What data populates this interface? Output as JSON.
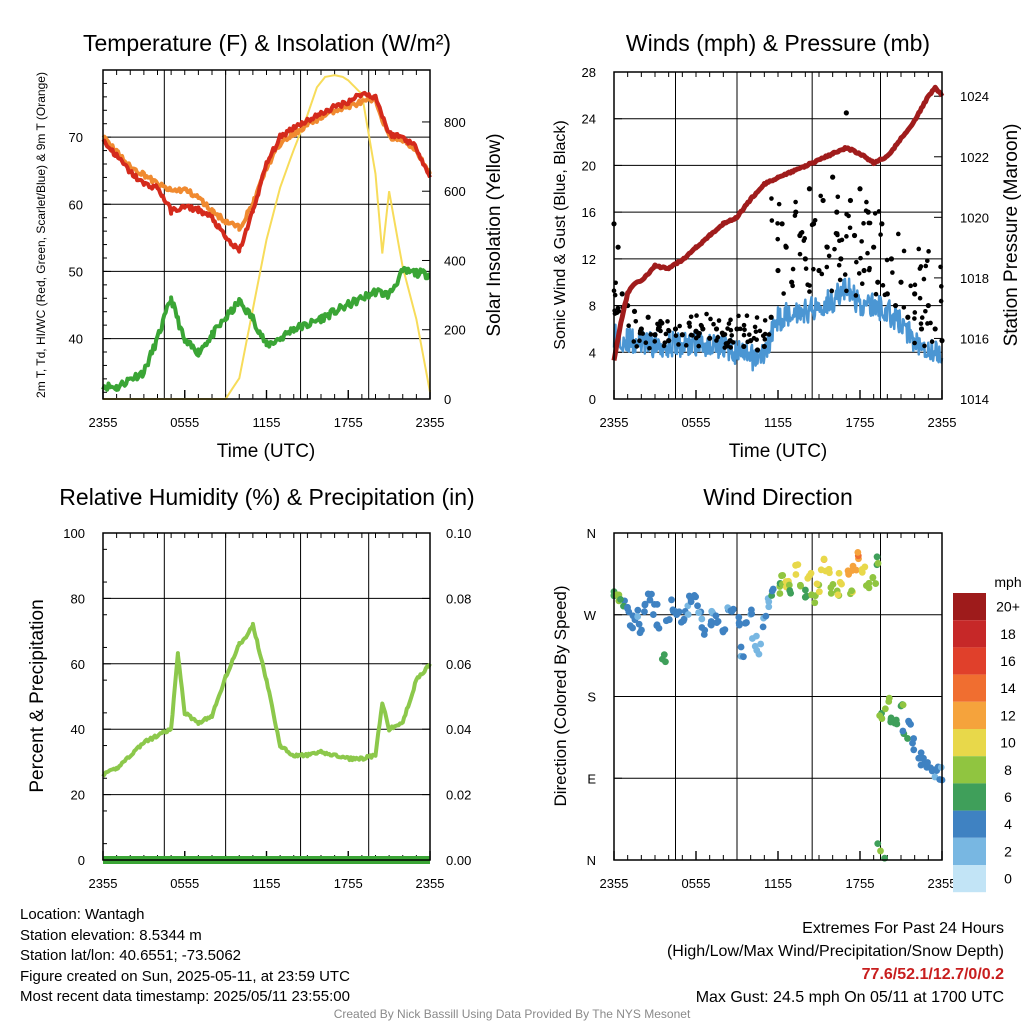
{
  "colors": {
    "temp": "#d42a1c",
    "dewpoint": "#3aa535",
    "heat_index": "#e03a2a",
    "temp_9m": "#f08a30",
    "insolation": "#f7dc5a",
    "wind": "#4b96d3",
    "gust": "#000000",
    "pressure": "#a01c1c",
    "rh": "#8cc84b",
    "precip": "#3aa535"
  },
  "panels": {
    "temperature": {
      "title": "Temperature (F) & Insolation (W/m²)",
      "ylabel_left": "2m T, Td, HI/WC (Red, Green, Scarlet/Blue) & 9m T (Orange)",
      "ylabel_right": "Solar Insolation (Yellow)",
      "xlabel": "Time (UTC)"
    },
    "winds": {
      "title": "Winds (mph) & Pressure (mb)",
      "ylabel_left": "Sonic Wind & Gust (Blue, Black)",
      "ylabel_right": "Station Pressure (Maroon)",
      "xlabel": "Time (UTC)"
    },
    "humidity": {
      "title": "Relative Humidity (%) & Precipitation (in)",
      "ylabel_left": "Percent & Precipitation"
    },
    "direction": {
      "title": "Wind Direction",
      "ylabel_left": "Direction (Colored By Speed)",
      "legend_title": "mph"
    }
  },
  "chart_data": [
    {
      "type": "line",
      "title": "Temperature (F) & Insolation (W/m²)",
      "xlabel": "Time (UTC)",
      "ylabel": "2m T, Td, HI/WC (Red, Green, Scarlet/Blue) & 9m T (Orange)",
      "ylabel_right": "Solar Insolation (Yellow)",
      "x_ticks": [
        "2355",
        "0555",
        "1155",
        "1755",
        "2355"
      ],
      "ylim": [
        31,
        80
      ],
      "y_ticks": [
        40,
        50,
        60,
        70
      ],
      "ylim_right": [
        0,
        950
      ],
      "y_ticks_right": [
        0,
        200,
        400,
        600,
        800
      ],
      "series": [
        {
          "axis": "left",
          "x": [
            0,
            1,
            2,
            3,
            4,
            5,
            6,
            7,
            8,
            9,
            10,
            11,
            12,
            13,
            14,
            15,
            16,
            17,
            18,
            19,
            20,
            21,
            22,
            23,
            24
          ],
          "values": [
            69.5,
            67.2,
            64.8,
            63.0,
            62.5,
            59.0,
            59.6,
            59.2,
            58.0,
            55.0,
            53.0,
            59.0,
            66.0,
            70.0,
            71.5,
            72.5,
            73.5,
            74.5,
            75.3,
            76.5,
            76.0,
            70.5,
            70.0,
            68.5,
            64.0
          ]
        },
        {
          "axis": "left",
          "x": [
            0,
            1,
            2,
            3,
            4,
            5,
            6,
            7,
            8,
            9,
            10,
            11,
            12,
            13,
            14,
            15,
            16,
            17,
            18,
            19,
            20,
            21,
            22,
            23,
            24
          ],
          "values": [
            33.0,
            32.7,
            34.0,
            35.0,
            40.0,
            46.0,
            39.5,
            38.0,
            40.5,
            43.0,
            45.5,
            43.0,
            39.0,
            40.0,
            41.5,
            42.0,
            43.0,
            44.0,
            45.0,
            46.0,
            47.0,
            46.5,
            50.0,
            49.8,
            49.5
          ]
        },
        {
          "axis": "left",
          "x": [
            0,
            1,
            2,
            3,
            4,
            5,
            6,
            7,
            8,
            9,
            10,
            11,
            12,
            13,
            14,
            15,
            16,
            17,
            18,
            19,
            20,
            21,
            22,
            23,
            24
          ],
          "values": [
            70.3,
            67.8,
            65.5,
            64.5,
            63.0,
            62.0,
            62.2,
            61.0,
            59.0,
            57.5,
            56.5,
            60.0,
            65.5,
            69.0,
            70.5,
            71.8,
            73.0,
            74.0,
            74.6,
            75.2,
            75.5,
            70.0,
            69.5,
            68.0,
            64.5
          ]
        },
        {
          "axis": "right",
          "x": [
            0,
            3,
            6,
            8,
            9,
            10,
            11,
            12,
            13,
            14,
            15,
            15.7,
            16.3,
            17,
            17.6,
            18,
            19,
            20,
            20.5,
            21,
            22,
            23,
            24
          ],
          "values": [
            0,
            0,
            0,
            0,
            0,
            60,
            260,
            460,
            610,
            720,
            820,
            900,
            930,
            935,
            930,
            920,
            880,
            650,
            420,
            600,
            380,
            230,
            20
          ]
        }
      ]
    },
    {
      "type": "scatter",
      "title": "Winds (mph) & Pressure (mb)",
      "xlabel": "Time (UTC)",
      "ylabel": "Sonic Wind & Gust (Blue, Black)",
      "ylabel_right": "Station Pressure (Maroon)",
      "x_ticks": [
        "2355",
        "0555",
        "1155",
        "1755",
        "2355"
      ],
      "ylim": [
        0,
        28
      ],
      "y_ticks": [
        0,
        4,
        8,
        12,
        16,
        20,
        24,
        28
      ],
      "ylim_right": [
        1014,
        1024.8
      ],
      "y_ticks_right": [
        1014,
        1016,
        1018,
        1020,
        1022,
        1024
      ],
      "series": [
        {
          "axis": "left",
          "x": [
            0,
            1,
            2,
            3,
            4,
            5,
            6,
            7,
            8,
            9,
            10,
            11,
            11.5,
            12,
            13,
            14,
            15,
            16,
            17,
            18,
            19,
            20,
            21,
            22,
            23,
            24
          ],
          "values": [
            5.5,
            5.0,
            4.8,
            4.6,
            4.7,
            4.6,
            4.8,
            4.7,
            4.5,
            4.0,
            3.5,
            3.8,
            5.5,
            6.8,
            7.5,
            7.5,
            8.0,
            8.5,
            9.5,
            8.0,
            8.0,
            7.5,
            6.5,
            5.0,
            4.5,
            3.5
          ]
        },
        {
          "axis": "left",
          "x": [
            0,
            0.3,
            0.6,
            1,
            1.5,
            2,
            2.5,
            3,
            3.5,
            4,
            4.5,
            5,
            5.5,
            6,
            6.5,
            7,
            7.5,
            8,
            8.5,
            9,
            9.5,
            10,
            10.5,
            11,
            11.5,
            12,
            12.3,
            12.6,
            13,
            13.3,
            13.6,
            14,
            14.3,
            14.6,
            15,
            15.3,
            15.6,
            16,
            16.3,
            16.6,
            17,
            17.3,
            17.6,
            18,
            18.3,
            18.6,
            19,
            19.3,
            19.6,
            20,
            20.3,
            20.6,
            21,
            21.5,
            22,
            22.5,
            23,
            23.5,
            24
          ],
          "values": [
            15,
            13,
            9,
            8,
            7.5,
            6,
            7,
            5.5,
            6.5,
            5,
            6,
            5.5,
            6.5,
            5.8,
            6,
            5.2,
            6,
            5.5,
            5,
            6,
            4.5,
            5,
            4.2,
            4.5,
            7,
            11,
            15,
            13,
            10,
            16,
            14,
            12,
            18,
            15,
            11,
            17,
            13,
            19,
            16,
            12,
            24.5,
            17,
            14,
            18,
            11,
            16,
            13,
            10,
            15,
            9,
            12,
            8,
            10,
            7,
            9,
            6,
            8,
            6,
            5
          ]
        },
        {
          "axis": "right",
          "x": [
            0,
            0.5,
            1,
            1.5,
            2,
            3,
            4,
            5,
            6,
            7,
            8,
            9,
            10,
            11,
            12,
            13,
            14,
            15,
            16,
            17,
            18,
            19,
            20,
            21,
            22,
            23,
            23.5,
            24
          ],
          "values": [
            1015.3,
            1016.5,
            1017.5,
            1017.8,
            1017.9,
            1018.4,
            1018.3,
            1018.6,
            1019.0,
            1019.4,
            1019.8,
            1020.0,
            1020.6,
            1021.1,
            1021.3,
            1021.5,
            1021.7,
            1021.9,
            1022.1,
            1022.3,
            1022.1,
            1021.8,
            1022.0,
            1022.6,
            1023.2,
            1024.0,
            1024.3,
            1024.0
          ]
        }
      ]
    },
    {
      "type": "line",
      "title": "Relative Humidity (%) & Precipitation (in)",
      "ylabel": "Percent & Precipitation",
      "x_ticks": [
        "2355",
        "0555",
        "1155",
        "1755",
        "2355"
      ],
      "ylim": [
        0,
        100
      ],
      "y_ticks": [
        0,
        20,
        40,
        60,
        80,
        100
      ],
      "ylim_right": [
        0,
        0.1
      ],
      "y_ticks_right": [
        "0.00",
        "0.02",
        "0.04",
        "0.06",
        "0.08",
        "0.10"
      ],
      "series": [
        {
          "axis": "left",
          "x": [
            0,
            1,
            2,
            3,
            4,
            5,
            5.5,
            6,
            7,
            8,
            9,
            10,
            10.5,
            11,
            12,
            13,
            14,
            15,
            16,
            17,
            18,
            19,
            20,
            20.5,
            21,
            22,
            23,
            24
          ],
          "values": [
            26,
            28,
            32,
            36,
            38,
            40,
            63,
            45,
            42,
            44,
            56,
            66,
            68,
            72,
            55,
            35,
            32,
            32,
            33,
            32,
            31,
            31,
            32,
            48,
            40,
            42,
            55,
            60
          ]
        },
        {
          "axis": "right",
          "x": [
            0,
            24
          ],
          "values": [
            0,
            0
          ]
        }
      ]
    },
    {
      "type": "scatter",
      "title": "Wind Direction",
      "ylabel": "Direction (Colored By Speed)",
      "x_ticks": [
        "2355",
        "0555",
        "1155",
        "1755",
        "2355"
      ],
      "y_ticks": [
        "N",
        "E",
        "S",
        "W",
        "N"
      ],
      "ylim": [
        0,
        360
      ],
      "series": [
        {
          "x": [
            0,
            0.3,
            0.6,
            1,
            1.3,
            1.6,
            2,
            2.3,
            2.6,
            3,
            3.3,
            3.6,
            4,
            4.3,
            4.6,
            5,
            5.3,
            5.6,
            6,
            6.3,
            6.6,
            7,
            7.3,
            7.6,
            8,
            8.3,
            8.6,
            9,
            9.3,
            9.6,
            10,
            10.3,
            10.6,
            11,
            11.3,
            11.6,
            12,
            12.3,
            12.6,
            13,
            13.3,
            13.6,
            14,
            14.3,
            14.6,
            15,
            15.3,
            15.6,
            16,
            16.3,
            16.6,
            17,
            17.3,
            17.6,
            18,
            18.3,
            18.6,
            19,
            19.3,
            19.6,
            20,
            20.3,
            20.6,
            21,
            21.3,
            21.6,
            22,
            22.3,
            22.6,
            23,
            23.3,
            23.6,
            24
          ],
          "values": [
            290,
            285,
            280,
            275,
            262,
            270,
            255,
            280,
            290,
            275,
            260,
            225,
            265,
            280,
            270,
            262,
            275,
            290,
            285,
            270,
            255,
            260,
            278,
            262,
            250,
            272,
            280,
            265,
            230,
            255,
            275,
            240,
            232,
            262,
            282,
            292,
            300,
            310,
            305,
            296,
            320,
            300,
            292,
            310,
            288,
            302,
            326,
            315,
            300,
            290,
            310,
            318,
            296,
            325,
            335,
            318,
            305,
            308,
            330,
            160,
            172,
            158,
            150,
            165,
            140,
            155,
            128,
            118,
            110,
            108,
            104,
            98,
            95
          ],
          "speed": [
            6,
            7,
            5,
            4,
            4,
            3,
            4,
            5,
            4,
            4,
            3,
            6,
            4,
            4,
            4,
            4,
            3,
            4,
            4,
            3,
            4,
            4,
            3,
            4,
            4,
            3,
            4,
            4,
            3,
            4,
            3,
            2,
            2,
            3,
            3,
            5,
            7,
            8,
            9,
            7,
            10,
            8,
            6,
            9,
            8,
            9,
            11,
            10,
            8,
            9,
            10,
            11,
            9,
            12,
            13,
            10,
            9,
            8,
            7,
            7,
            8,
            6,
            6,
            7,
            5,
            4,
            4,
            4,
            3,
            4,
            4,
            3,
            3
          ]
        }
      ],
      "colorbar": {
        "labels": [
          "20+",
          "18",
          "16",
          "14",
          "12",
          "10",
          "8",
          "6",
          "4",
          "2",
          "0"
        ],
        "colors": [
          "#9e1b1b",
          "#c62828",
          "#e0402b",
          "#f06e30",
          "#f5a33c",
          "#e8d84a",
          "#90c540",
          "#3f9f5a",
          "#3f82c2",
          "#78b7e2",
          "#c2e4f6"
        ]
      }
    }
  ],
  "info": [
    "Location: Wantagh",
    "Station elevation: 8.5344 m",
    "Station lat/lon: 40.6551; -73.5062",
    "Figure created on Sun, 2025-05-11, at 23:59 UTC",
    "Most recent data timestamp: 2025/05/11 23:55:00"
  ],
  "extremes": {
    "heading": "Extremes For Past 24 Hours",
    "subheading": "(High/Low/Max Wind/Precipitation/Snow Depth)",
    "values": "77.6/52.1/12.7/0/0.2",
    "max_gust": "Max Gust: 24.5 mph On 05/11 at 1700 UTC"
  },
  "credit": "Created By Nick Bassill Using Data Provided By The NYS Mesonet"
}
